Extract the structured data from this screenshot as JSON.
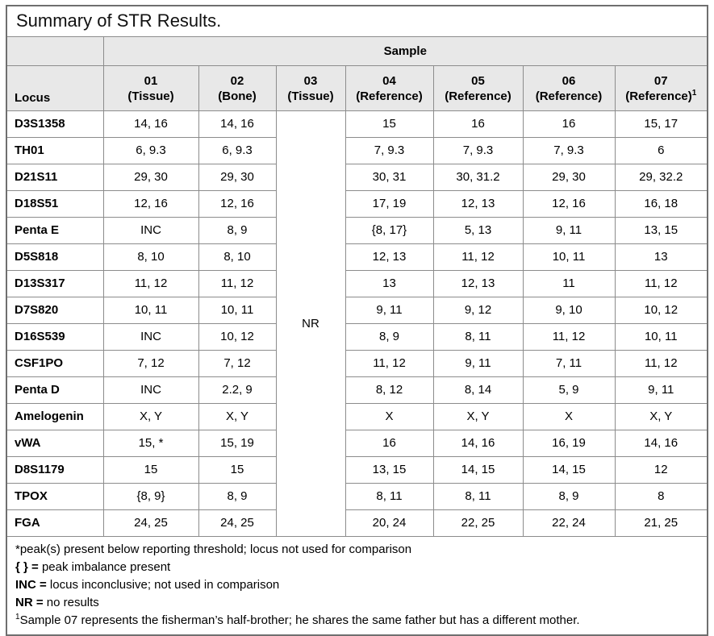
{
  "title": "Summary of STR Results.",
  "colors": {
    "header_bg": "#e8e8e8",
    "inner_border": "#8c8c8c",
    "outer_border": "#6f6f6f",
    "text": "#000000"
  },
  "table": {
    "sample_header": "Sample",
    "locus_header": "Locus",
    "columns": [
      {
        "id": "01",
        "label": "01",
        "sub": "(Tissue)",
        "sup": ""
      },
      {
        "id": "02",
        "label": "02",
        "sub": "(Bone)",
        "sup": ""
      },
      {
        "id": "03",
        "label": "03",
        "sub": "(Tissue)",
        "sup": ""
      },
      {
        "id": "04",
        "label": "04",
        "sub": "(Reference)",
        "sup": ""
      },
      {
        "id": "05",
        "label": "05",
        "sub": "(Reference)",
        "sup": ""
      },
      {
        "id": "06",
        "label": "06",
        "sub": "(Reference)",
        "sup": ""
      },
      {
        "id": "07",
        "label": "07",
        "sub": "(Reference)",
        "sup": "1"
      }
    ],
    "nr_value": "NR",
    "rows": [
      {
        "locus": "D3S1358",
        "s01": "14, 16",
        "s02": "14, 16",
        "s04": "15",
        "s05": "16",
        "s06": "16",
        "s07": "15, 17"
      },
      {
        "locus": "TH01",
        "s01": "6, 9.3",
        "s02": "6, 9.3",
        "s04": "7, 9.3",
        "s05": "7, 9.3",
        "s06": "7, 9.3",
        "s07": "6"
      },
      {
        "locus": "D21S11",
        "s01": "29, 30",
        "s02": "29, 30",
        "s04": "30, 31",
        "s05": "30, 31.2",
        "s06": "29, 30",
        "s07": "29, 32.2"
      },
      {
        "locus": "D18S51",
        "s01": "12, 16",
        "s02": "12, 16",
        "s04": "17, 19",
        "s05": "12, 13",
        "s06": "12, 16",
        "s07": "16, 18"
      },
      {
        "locus": "Penta E",
        "s01": "INC",
        "s02": "8, 9",
        "s04": "{8, 17}",
        "s05": "5, 13",
        "s06": "9, 11",
        "s07": "13, 15"
      },
      {
        "locus": "D5S818",
        "s01": "8, 10",
        "s02": "8, 10",
        "s04": "12, 13",
        "s05": "11, 12",
        "s06": "10, 11",
        "s07": "13"
      },
      {
        "locus": "D13S317",
        "s01": "11, 12",
        "s02": "11, 12",
        "s04": "13",
        "s05": "12, 13",
        "s06": "11",
        "s07": "11, 12"
      },
      {
        "locus": "D7S820",
        "s01": "10, 11",
        "s02": "10, 11",
        "s04": "9, 11",
        "s05": "9, 12",
        "s06": "9, 10",
        "s07": "10, 12"
      },
      {
        "locus": "D16S539",
        "s01": "INC",
        "s02": "10, 12",
        "s04": "8, 9",
        "s05": "8, 11",
        "s06": "11, 12",
        "s07": "10, 11"
      },
      {
        "locus": "CSF1PO",
        "s01": "7, 12",
        "s02": "7, 12",
        "s04": "11, 12",
        "s05": "9, 11",
        "s06": "7, 11",
        "s07": "11, 12"
      },
      {
        "locus": "Penta D",
        "s01": "INC",
        "s02": "2.2, 9",
        "s04": "8, 12",
        "s05": "8, 14",
        "s06": "5, 9",
        "s07": "9, 11"
      },
      {
        "locus": "Amelogenin",
        "s01": "X, Y",
        "s02": "X, Y",
        "s04": "X",
        "s05": "X, Y",
        "s06": "X",
        "s07": "X, Y"
      },
      {
        "locus": "vWA",
        "s01": "15, *",
        "s02": "15, 19",
        "s04": "16",
        "s05": "14, 16",
        "s06": "16, 19",
        "s07": "14, 16"
      },
      {
        "locus": "D8S1179",
        "s01": "15",
        "s02": "15",
        "s04": "13, 15",
        "s05": "14, 15",
        "s06": "14, 15",
        "s07": "12"
      },
      {
        "locus": "TPOX",
        "s01": "{8, 9}",
        "s02": "8, 9",
        "s04": "8, 11",
        "s05": "8, 11",
        "s06": "8, 9",
        "s07": "8"
      },
      {
        "locus": "FGA",
        "s01": "24, 25",
        "s02": "24, 25",
        "s04": "20, 24",
        "s05": "22, 25",
        "s06": "22, 24",
        "s07": "21, 25"
      }
    ]
  },
  "footnotes": [
    {
      "sup": "",
      "bold_prefix": "",
      "text": "*peak(s) present below reporting threshold; locus not used for comparison"
    },
    {
      "sup": "",
      "bold_prefix": "{ } =",
      "text": " peak imbalance present"
    },
    {
      "sup": "",
      "bold_prefix": "INC =",
      "text": " locus inconclusive; not used in comparison"
    },
    {
      "sup": "",
      "bold_prefix": "NR =",
      "text": " no results"
    },
    {
      "sup": "1",
      "bold_prefix": "",
      "text": "Sample 07 represents the fisherman’s half-brother; he shares the same father but has a different mother."
    }
  ]
}
